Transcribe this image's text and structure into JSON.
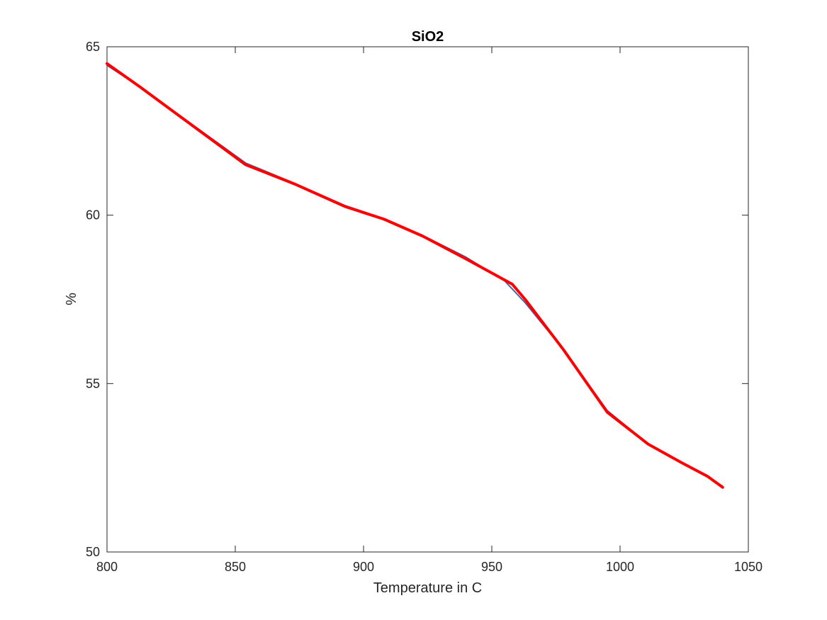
{
  "chart_data": {
    "type": "line",
    "title": "SiO2",
    "xlabel": "Temperature in C",
    "ylabel": "%",
    "xlim": [
      800,
      1050
    ],
    "ylim": [
      50,
      65
    ],
    "xticks": [
      800,
      850,
      900,
      950,
      1000,
      1050
    ],
    "yticks": [
      50,
      55,
      60,
      65
    ],
    "xtick_labels": [
      "800",
      "850",
      "900",
      "950",
      "1000",
      "1050"
    ],
    "ytick_labels": [
      "50",
      "55",
      "60",
      "65"
    ],
    "grid": false,
    "legend": "none",
    "box": true,
    "series": [
      {
        "color": "#4a5fa0",
        "line_width": 2,
        "x": [
          800,
          813,
          854,
          873,
          893,
          908,
          923,
          940,
          955,
          963,
          978,
          995,
          1011,
          1024,
          1034,
          1040
        ],
        "y": [
          64.45,
          63.8,
          61.55,
          60.95,
          60.28,
          59.9,
          59.4,
          58.75,
          58.05,
          57.4,
          56.0,
          54.2,
          53.2,
          52.65,
          52.25,
          51.95
        ]
      },
      {
        "color": "#ff0000",
        "line_width": 4,
        "x": [
          800,
          813,
          854,
          873,
          893,
          908,
          923,
          940,
          958,
          963,
          978,
          995,
          1011,
          1024,
          1034,
          1040
        ],
        "y": [
          64.5,
          63.8,
          61.5,
          60.93,
          60.25,
          59.88,
          59.38,
          58.7,
          57.95,
          57.5,
          56.0,
          54.15,
          53.2,
          52.65,
          52.25,
          51.92
        ]
      }
    ]
  }
}
